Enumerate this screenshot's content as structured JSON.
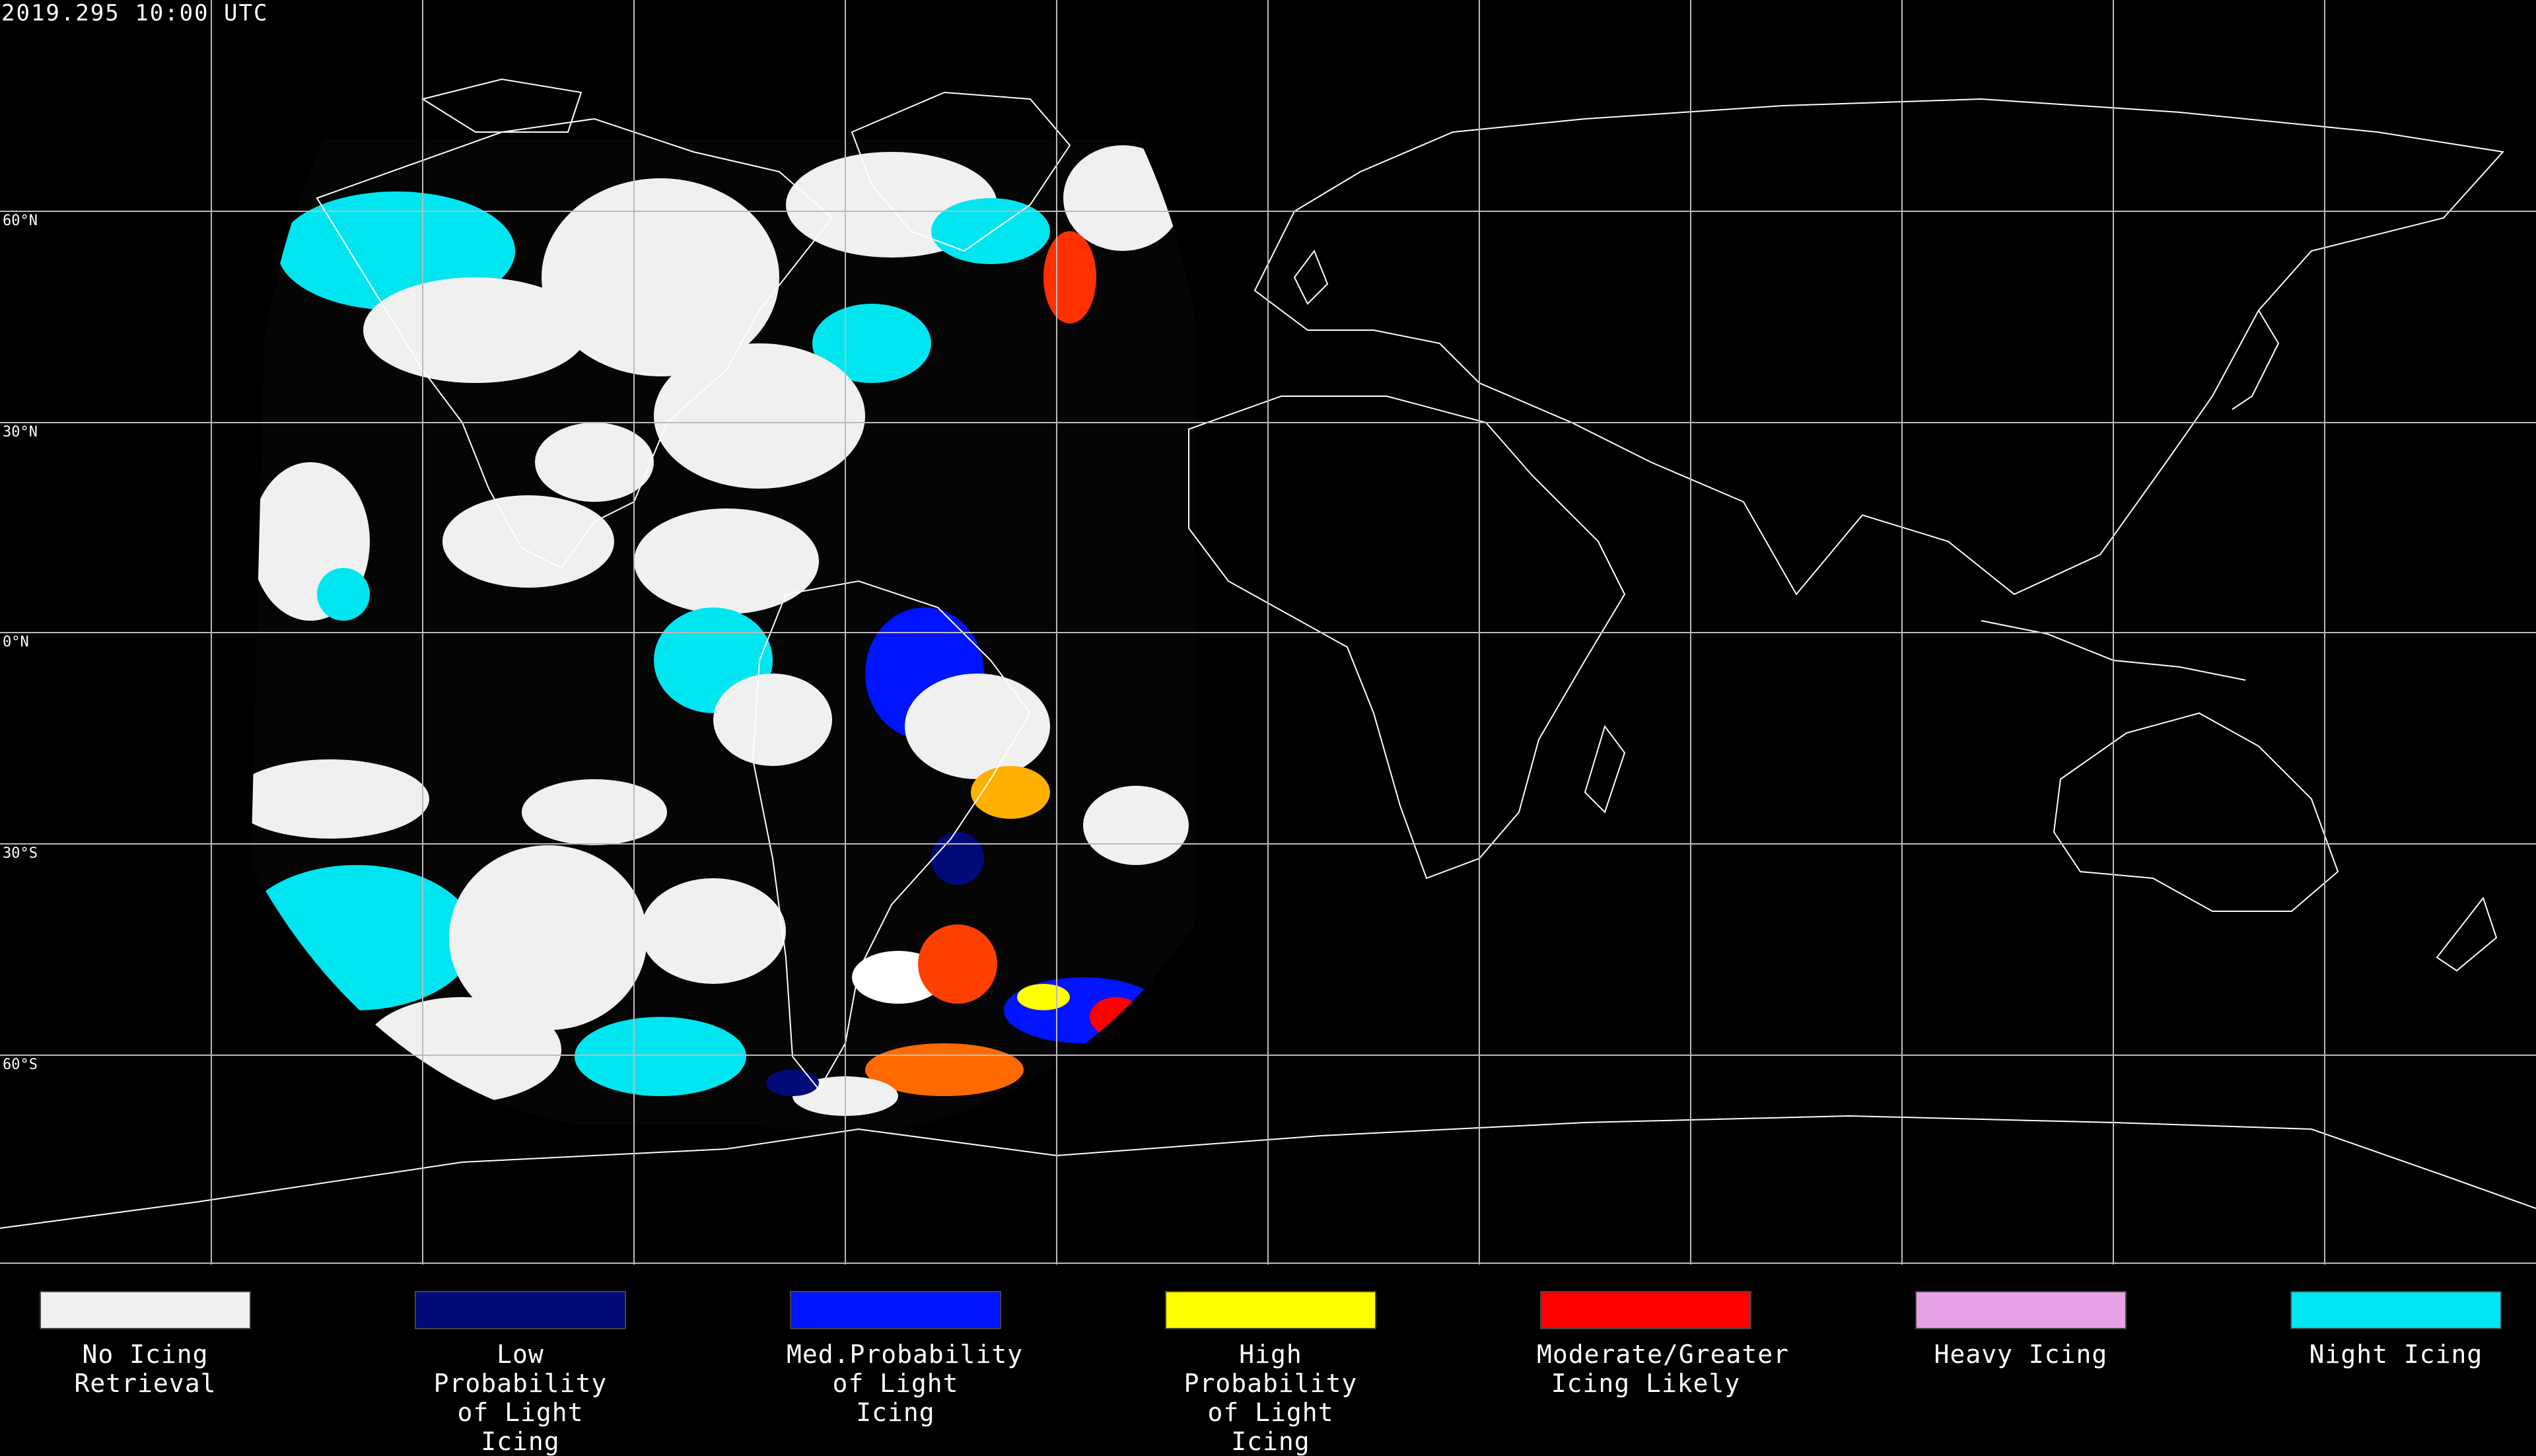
{
  "timestamp": "2019.295 10:00 UTC",
  "lat_labels": [
    "60°N",
    "30°N",
    "0°N",
    "30°S",
    "60°S"
  ],
  "legend": [
    {
      "label_line1": "No Icing",
      "label_line2": "Retrieval",
      "color": "#f0f0f0"
    },
    {
      "label_line1": "Low Probability",
      "label_line2": "of Light Icing",
      "color": "#000a78"
    },
    {
      "label_line1": "Med.Probability",
      "label_line2": "of Light Icing",
      "color": "#0014ff"
    },
    {
      "label_line1": "High Probability",
      "label_line2": "of Light Icing",
      "color": "#ffff00"
    },
    {
      "label_line1": "Moderate/Greater",
      "label_line2": "Icing Likely",
      "color": "#ff0000"
    },
    {
      "label_line1": "Heavy Icing",
      "label_line2": "",
      "color": "#e6a0e6"
    },
    {
      "label_line1": "Night Icing",
      "label_line2": "",
      "color": "#00e6f0"
    }
  ]
}
